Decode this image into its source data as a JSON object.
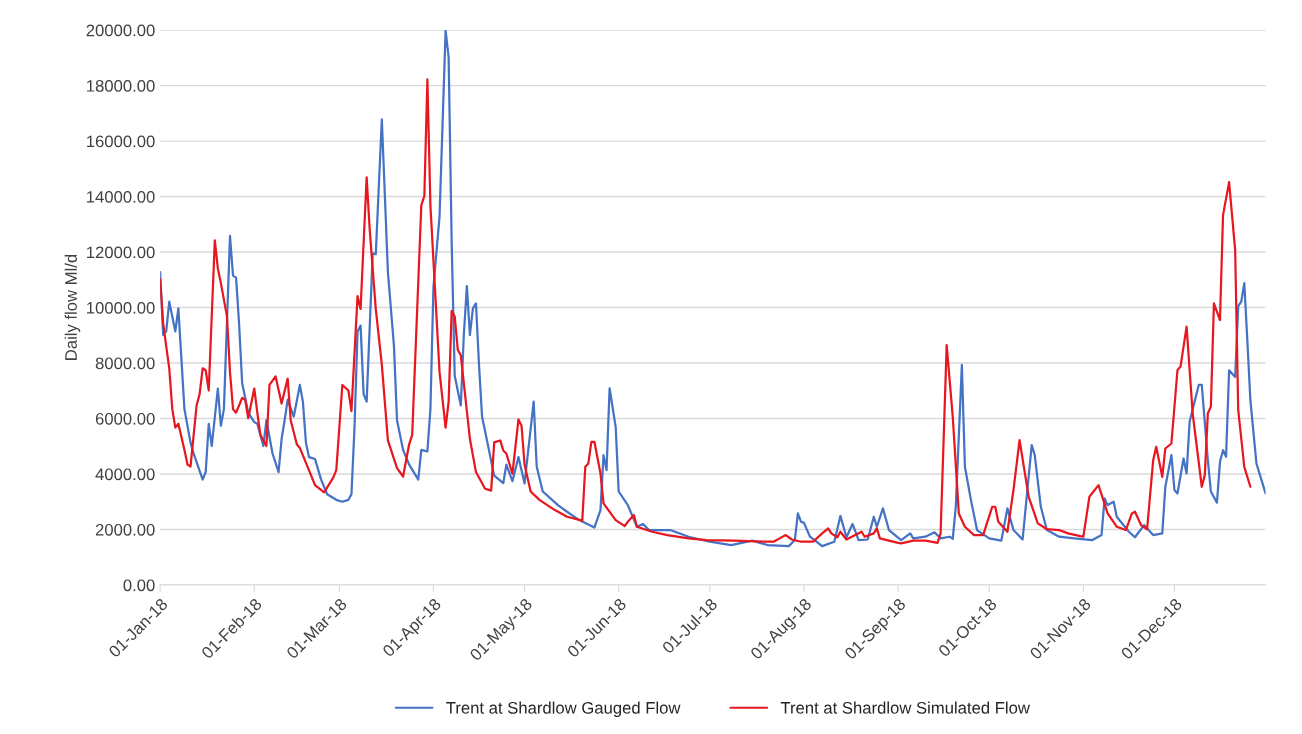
{
  "chart_data": {
    "type": "line",
    "ylabel": "Daily flow Ml/d",
    "xlim": [
      "2018-01-01",
      "2018-12-31"
    ],
    "xticks": [
      {
        "value": "2018-01-01",
        "label": "01-Jan-18"
      },
      {
        "value": "2018-02-01",
        "label": "01-Feb-18"
      },
      {
        "value": "2018-03-01",
        "label": "01-Mar-18"
      },
      {
        "value": "2018-04-01",
        "label": "01-Apr-18"
      },
      {
        "value": "2018-05-01",
        "label": "01-May-18"
      },
      {
        "value": "2018-06-01",
        "label": "01-Jun-18"
      },
      {
        "value": "2018-07-01",
        "label": "01-Jul-18"
      },
      {
        "value": "2018-08-01",
        "label": "01-Aug-18"
      },
      {
        "value": "2018-09-01",
        "label": "01-Sep-18"
      },
      {
        "value": "2018-10-01",
        "label": "01-Oct-18"
      },
      {
        "value": "2018-11-01",
        "label": "01-Nov-18"
      },
      {
        "value": "2018-12-01",
        "label": "01-Dec-18"
      }
    ],
    "ylim": [
      0,
      20000
    ],
    "yticks": [
      {
        "value": 0,
        "label": "0.00"
      },
      {
        "value": 2000,
        "label": "2000.00"
      },
      {
        "value": 4000,
        "label": "4000.00"
      },
      {
        "value": 6000,
        "label": "6000.00"
      },
      {
        "value": 8000,
        "label": "8000.00"
      },
      {
        "value": 10000,
        "label": "10000.00"
      },
      {
        "value": 12000,
        "label": "12000.00"
      },
      {
        "value": 14000,
        "label": "14000.00"
      },
      {
        "value": 16000,
        "label": "16000.00"
      },
      {
        "value": 18000,
        "label": "18000.00"
      },
      {
        "value": 20000,
        "label": "20000.00"
      }
    ],
    "grid": "y",
    "legend": "bottom",
    "marker": "none",
    "line_style": "solid",
    "series": [
      {
        "name": "Trent at Shardlow Gauged Flow",
        "color": "#4472c4",
        "x": [
          "2018-01-01",
          "2018-01-02",
          "2018-01-03",
          "2018-01-04",
          "2018-01-06",
          "2018-01-07",
          "2018-01-09",
          "2018-01-11",
          "2018-01-12",
          "2018-01-15",
          "2018-01-16",
          "2018-01-17",
          "2018-01-18",
          "2018-01-20",
          "2018-01-21",
          "2018-01-22",
          "2018-01-24",
          "2018-01-25",
          "2018-01-26",
          "2018-01-27",
          "2018-01-28",
          "2018-01-30",
          "2018-02-01",
          "2018-02-02",
          "2018-02-04",
          "2018-02-05",
          "2018-02-07",
          "2018-02-09",
          "2018-02-10",
          "2018-02-11",
          "2018-02-12",
          "2018-02-14",
          "2018-02-16",
          "2018-02-17",
          "2018-02-18",
          "2018-02-19",
          "2018-02-21",
          "2018-02-23",
          "2018-02-25",
          "2018-02-28",
          "2018-03-02",
          "2018-03-04",
          "2018-03-05",
          "2018-03-06",
          "2018-03-07",
          "2018-03-08",
          "2018-03-09",
          "2018-03-10",
          "2018-03-12",
          "2018-03-13",
          "2018-03-15",
          "2018-03-17",
          "2018-03-19",
          "2018-03-20",
          "2018-03-22",
          "2018-03-24",
          "2018-03-27",
          "2018-03-28",
          "2018-03-30",
          "2018-03-31",
          "2018-04-01",
          "2018-04-03",
          "2018-04-04",
          "2018-04-05",
          "2018-04-06",
          "2018-04-07",
          "2018-04-08",
          "2018-04-10",
          "2018-04-11",
          "2018-04-12",
          "2018-04-13",
          "2018-04-14",
          "2018-04-15",
          "2018-04-16",
          "2018-04-17",
          "2018-04-19",
          "2018-04-21",
          "2018-04-24",
          "2018-04-25",
          "2018-04-27",
          "2018-04-29",
          "2018-05-01",
          "2018-05-04",
          "2018-05-05",
          "2018-05-07",
          "2018-05-12",
          "2018-05-15",
          "2018-05-19",
          "2018-05-24",
          "2018-05-26",
          "2018-05-27",
          "2018-05-28",
          "2018-05-29",
          "2018-05-31",
          "2018-06-01",
          "2018-06-04",
          "2018-06-07",
          "2018-06-09",
          "2018-06-11",
          "2018-06-18",
          "2018-06-24",
          "2018-07-01",
          "2018-07-08",
          "2018-07-15",
          "2018-07-20",
          "2018-07-27",
          "2018-07-29",
          "2018-07-30",
          "2018-07-31",
          "2018-08-01",
          "2018-08-03",
          "2018-08-07",
          "2018-08-11",
          "2018-08-13",
          "2018-08-15",
          "2018-08-17",
          "2018-08-19",
          "2018-08-22",
          "2018-08-24",
          "2018-08-25",
          "2018-08-27",
          "2018-08-29",
          "2018-09-02",
          "2018-09-05",
          "2018-09-06",
          "2018-09-10",
          "2018-09-13",
          "2018-09-15",
          "2018-09-18",
          "2018-09-19",
          "2018-09-20",
          "2018-09-22",
          "2018-09-23",
          "2018-09-25",
          "2018-09-27",
          "2018-10-01",
          "2018-10-05",
          "2018-10-07",
          "2018-10-09",
          "2018-10-12",
          "2018-10-15",
          "2018-10-16",
          "2018-10-18",
          "2018-10-20",
          "2018-10-24",
          "2018-10-29",
          "2018-11-04",
          "2018-11-07",
          "2018-11-08",
          "2018-11-09",
          "2018-11-11",
          "2018-11-12",
          "2018-11-16",
          "2018-11-18",
          "2018-11-21",
          "2018-11-24",
          "2018-11-27",
          "2018-11-28",
          "2018-11-30",
          "2018-12-01",
          "2018-12-02",
          "2018-12-04",
          "2018-12-05",
          "2018-12-06",
          "2018-12-09",
          "2018-12-10",
          "2018-12-12",
          "2018-12-13",
          "2018-12-15",
          "2018-12-16",
          "2018-12-17",
          "2018-12-18",
          "2018-12-19",
          "2018-12-21",
          "2018-12-22",
          "2018-12-23",
          "2018-12-24",
          "2018-12-25",
          "2018-12-26",
          "2018-12-28",
          "2018-12-31"
        ],
        "values": [
          11280,
          9010,
          9140,
          10210,
          9140,
          9970,
          6340,
          5140,
          4740,
          3800,
          4070,
          5810,
          5010,
          7080,
          5740,
          6340,
          12580,
          11150,
          11080,
          9410,
          7280,
          6210,
          5870,
          5810,
          5010,
          5940,
          4740,
          4070,
          5270,
          5940,
          6680,
          6070,
          7210,
          6610,
          5140,
          4610,
          4540,
          3800,
          3270,
          3070,
          3000,
          3070,
          3270,
          5670,
          9140,
          9350,
          6880,
          6610,
          11950,
          11920,
          16780,
          11280,
          8610,
          5940,
          4870,
          4340,
          3800,
          4870,
          4810,
          6340,
          10750,
          13280,
          16620,
          19980,
          19020,
          12350,
          7540,
          6470,
          9010,
          10770,
          9010,
          9970,
          10150,
          7940,
          6070,
          5010,
          3940,
          3670,
          4340,
          3740,
          4610,
          3660,
          6610,
          4260,
          3370,
          2880,
          2640,
          2340,
          2070,
          2700,
          4680,
          4140,
          7090,
          5700,
          3370,
          2880,
          2100,
          2200,
          1980,
          1980,
          1740,
          1560,
          1440,
          1600,
          1440,
          1400,
          1620,
          2580,
          2280,
          2240,
          1740,
          1400,
          1560,
          2490,
          1720,
          2200,
          1620,
          1640,
          2460,
          2100,
          2760,
          1980,
          1620,
          1860,
          1680,
          1740,
          1900,
          1680,
          1740,
          1660,
          2820,
          7930,
          4260,
          3060,
          1980,
          1680,
          1600,
          2760,
          1980,
          1640,
          5040,
          4680,
          2820,
          1980,
          1740,
          1680,
          1620,
          1800,
          3120,
          2880,
          3000,
          2460,
          1920,
          1720,
          2160,
          1800,
          1860,
          3540,
          4680,
          3420,
          3300,
          4560,
          4020,
          5880,
          7210,
          7210,
          4500,
          3370,
          2970,
          4440,
          4860,
          4620,
          7740,
          7500,
          10050,
          10210,
          10880,
          8830,
          6670,
          4380,
          3300
        ]
      },
      {
        "name": "Trent at Shardlow Simulated Flow",
        "color": "#e8161e",
        "x": [
          "2018-01-01",
          "2018-01-02",
          "2018-01-04",
          "2018-01-05",
          "2018-01-06",
          "2018-01-07",
          "2018-01-09",
          "2018-01-10",
          "2018-01-11",
          "2018-01-13",
          "2018-01-14",
          "2018-01-15",
          "2018-01-16",
          "2018-01-17",
          "2018-01-19",
          "2018-01-20",
          "2018-01-21",
          "2018-01-23",
          "2018-01-24",
          "2018-01-25",
          "2018-01-26",
          "2018-01-28",
          "2018-01-29",
          "2018-01-30",
          "2018-02-01",
          "2018-02-02",
          "2018-02-03",
          "2018-02-05",
          "2018-02-06",
          "2018-02-08",
          "2018-02-10",
          "2018-02-12",
          "2018-02-13",
          "2018-02-15",
          "2018-02-16",
          "2018-02-19",
          "2018-02-21",
          "2018-02-24",
          "2018-02-27",
          "2018-02-28",
          "2018-03-02",
          "2018-03-04",
          "2018-03-05",
          "2018-03-07",
          "2018-03-08",
          "2018-03-10",
          "2018-03-11",
          "2018-03-13",
          "2018-03-15",
          "2018-03-17",
          "2018-03-20",
          "2018-03-22",
          "2018-03-24",
          "2018-03-25",
          "2018-03-28",
          "2018-03-29",
          "2018-03-30",
          "2018-03-31",
          "2018-04-03",
          "2018-04-05",
          "2018-04-06",
          "2018-04-07",
          "2018-04-08",
          "2018-04-09",
          "2018-04-10",
          "2018-04-13",
          "2018-04-15",
          "2018-04-18",
          "2018-04-20",
          "2018-04-21",
          "2018-04-23",
          "2018-04-24",
          "2018-04-25",
          "2018-04-27",
          "2018-04-29",
          "2018-04-30",
          "2018-05-01",
          "2018-05-03",
          "2018-05-06",
          "2018-05-11",
          "2018-05-15",
          "2018-05-20",
          "2018-05-21",
          "2018-05-22",
          "2018-05-23",
          "2018-05-24",
          "2018-05-26",
          "2018-05-27",
          "2018-05-31",
          "2018-06-03",
          "2018-06-04",
          "2018-06-06",
          "2018-06-07",
          "2018-06-12",
          "2018-06-17",
          "2018-06-24",
          "2018-06-30",
          "2018-07-09",
          "2018-07-19",
          "2018-07-22",
          "2018-07-24",
          "2018-07-26",
          "2018-07-28",
          "2018-07-31",
          "2018-08-04",
          "2018-08-07",
          "2018-08-09",
          "2018-08-10",
          "2018-08-12",
          "2018-08-13",
          "2018-08-15",
          "2018-08-20",
          "2018-08-21",
          "2018-08-24",
          "2018-08-25",
          "2018-08-26",
          "2018-09-01",
          "2018-09-02",
          "2018-09-06",
          "2018-09-10",
          "2018-09-14",
          "2018-09-15",
          "2018-09-17",
          "2018-09-19",
          "2018-09-21",
          "2018-09-23",
          "2018-09-26",
          "2018-09-29",
          "2018-10-02",
          "2018-10-03",
          "2018-10-04",
          "2018-10-07",
          "2018-10-09",
          "2018-10-11",
          "2018-10-14",
          "2018-10-17",
          "2018-10-20",
          "2018-10-24",
          "2018-10-27",
          "2018-10-31",
          "2018-11-01",
          "2018-11-03",
          "2018-11-06",
          "2018-11-09",
          "2018-11-12",
          "2018-11-15",
          "2018-11-17",
          "2018-11-18",
          "2018-11-20",
          "2018-11-22",
          "2018-11-24",
          "2018-11-25",
          "2018-11-27",
          "2018-11-28",
          "2018-11-30",
          "2018-12-02",
          "2018-12-03",
          "2018-12-05",
          "2018-12-07",
          "2018-12-10",
          "2018-12-11",
          "2018-12-12",
          "2018-12-13",
          "2018-12-14",
          "2018-12-16",
          "2018-12-17",
          "2018-12-19",
          "2018-12-21",
          "2018-12-22",
          "2018-12-24",
          "2018-12-26"
        ],
        "values": [
          11010,
          9410,
          7810,
          6340,
          5670,
          5810,
          4870,
          4340,
          4270,
          6470,
          6880,
          7810,
          7740,
          7010,
          12420,
          11410,
          10880,
          9680,
          7680,
          6340,
          6210,
          6740,
          6680,
          6010,
          7080,
          6210,
          5410,
          5010,
          7210,
          7520,
          6540,
          7440,
          5940,
          5070,
          4940,
          4140,
          3600,
          3340,
          3870,
          4140,
          7210,
          7010,
          6270,
          10410,
          9950,
          14690,
          12820,
          9950,
          7940,
          5210,
          4210,
          3910,
          5070,
          5410,
          13680,
          14020,
          18220,
          13680,
          7680,
          5670,
          6610,
          9880,
          9680,
          8480,
          8280,
          5270,
          4070,
          3470,
          3400,
          5140,
          5210,
          4850,
          4740,
          4010,
          5970,
          5740,
          4340,
          3370,
          3060,
          2700,
          2460,
          2320,
          4260,
          4380,
          5160,
          5160,
          4020,
          2940,
          2340,
          2120,
          2280,
          2520,
          2100,
          1920,
          1800,
          1680,
          1620,
          1600,
          1560,
          1560,
          1680,
          1800,
          1640,
          1560,
          1560,
          1860,
          2040,
          1860,
          1720,
          1920,
          1640,
          1920,
          1740,
          1860,
          2040,
          1680,
          1520,
          1500,
          1600,
          1600,
          1520,
          1860,
          8650,
          6060,
          2580,
          2100,
          1800,
          1800,
          2820,
          2820,
          2280,
          1920,
          3420,
          5220,
          3180,
          2220,
          2010,
          1980,
          1860,
          1760,
          1740,
          3180,
          3600,
          2580,
          2100,
          1980,
          2580,
          2640,
          2160,
          2010,
          4500,
          4980,
          3900,
          4920,
          5100,
          7750,
          7870,
          9310,
          6190,
          3540,
          3960,
          6190,
          6430,
          10150,
          9550,
          13330,
          14520,
          12070,
          6310,
          4260,
          3540
        ]
      }
    ]
  }
}
